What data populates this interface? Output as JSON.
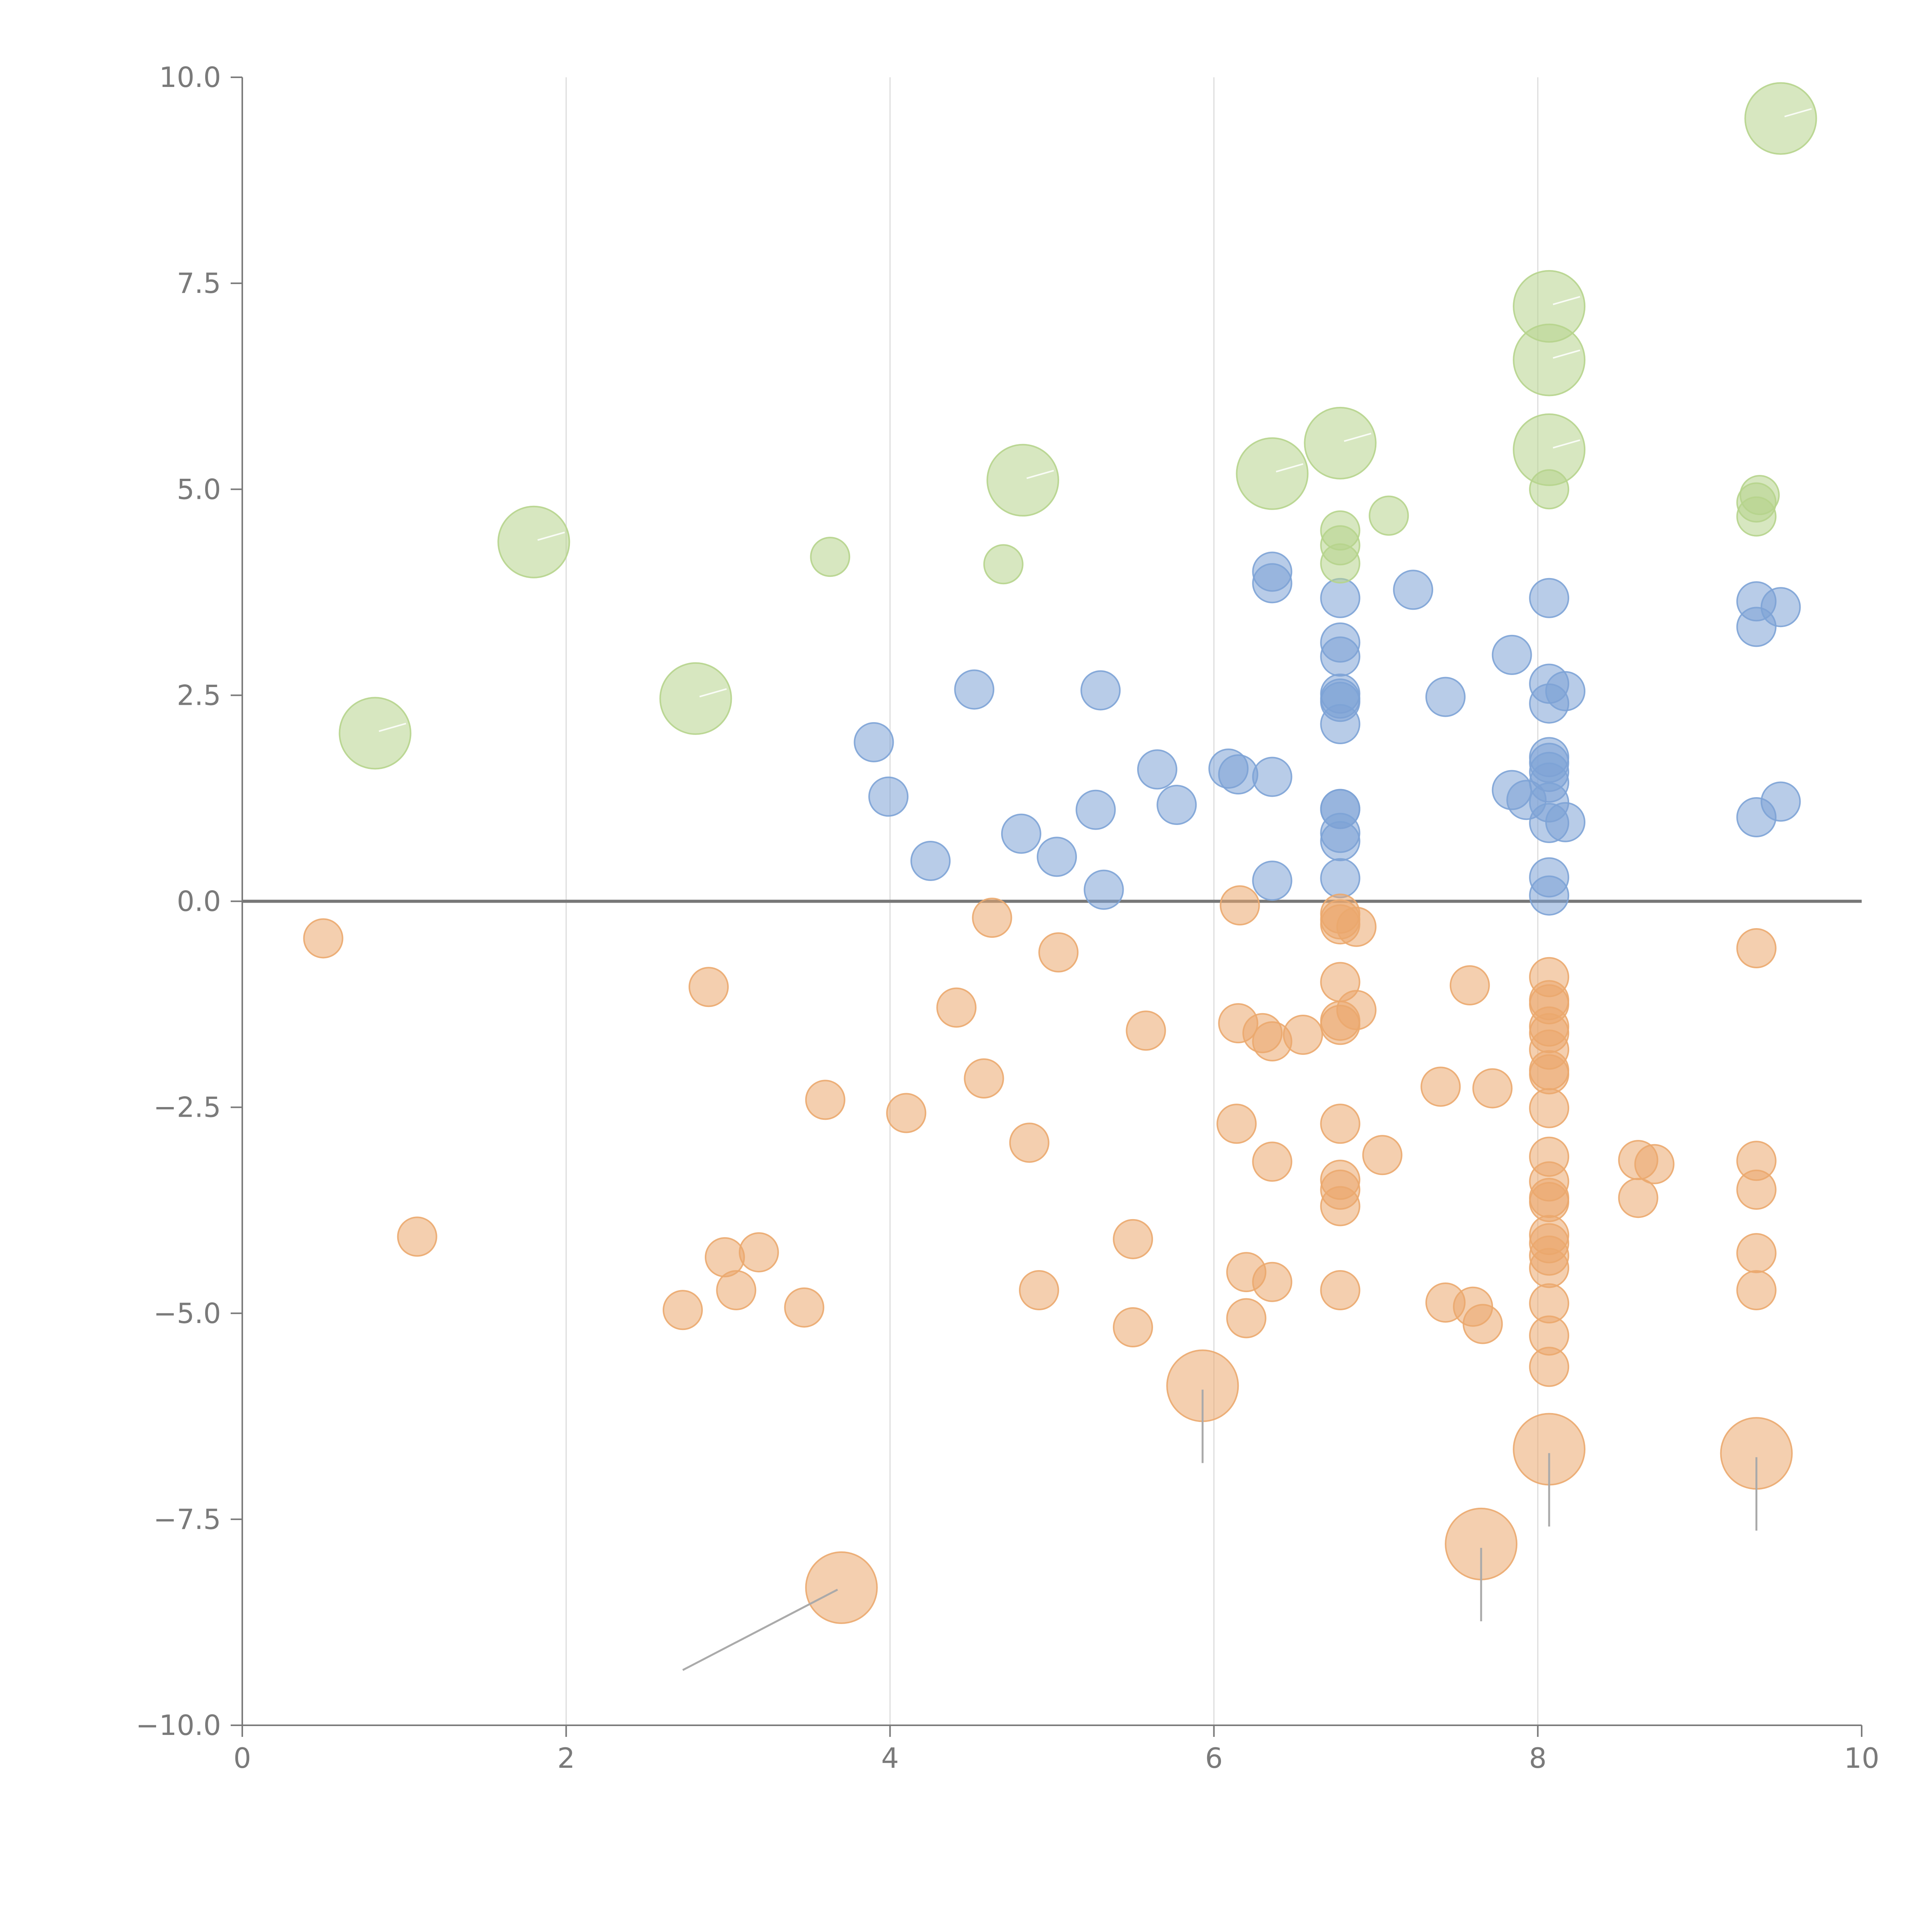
{
  "chart_data": {
    "type": "scatter",
    "title": "",
    "xlabel": "",
    "ylabel": "",
    "xlim": [
      0,
      10
    ],
    "ylim": [
      -10,
      10
    ],
    "x_ticks": [
      0,
      2,
      4,
      6,
      8,
      10
    ],
    "x_tick_labels": [
      "0",
      "2",
      "4",
      "6",
      "8",
      "10"
    ],
    "y_ticks": [
      10,
      7.5,
      5,
      2.5,
      0,
      -2.5,
      -5,
      -7.5,
      -10
    ],
    "y_tick_labels": [
      "10.0",
      "7.5",
      "5.0",
      "2.5",
      "0.0",
      "−2.5",
      "−5.0",
      "−7.5",
      "−10.0"
    ],
    "vertical_gridlines_at_x": [
      2,
      4,
      6,
      8
    ],
    "reference_line_y": 0,
    "colors": {
      "blue": "#7da3d6",
      "orange": "#eba86e",
      "green": "#b6d48c",
      "axis": "#7a7a7a",
      "grid": "#dddddd",
      "zero_line": "#777777"
    },
    "series": [
      {
        "name": "blue",
        "color": "#7da3d6",
        "points": [
          [
            3.9,
            1.93
          ],
          [
            3.99,
            1.27
          ],
          [
            4.25,
            0.49
          ],
          [
            4.52,
            2.57
          ],
          [
            4.81,
            0.82
          ],
          [
            5.03,
            0.54
          ],
          [
            5.27,
            1.11
          ],
          [
            5.3,
            2.56
          ],
          [
            5.32,
            0.14
          ],
          [
            5.65,
            1.6
          ],
          [
            5.77,
            1.17
          ],
          [
            6.09,
            1.61
          ],
          [
            6.15,
            1.54
          ],
          [
            6.36,
            1.51
          ],
          [
            6.36,
            0.25
          ],
          [
            6.36,
            4.0
          ],
          [
            6.36,
            3.86
          ],
          [
            6.78,
            3.68
          ],
          [
            6.78,
            3.14
          ],
          [
            6.78,
            2.97
          ],
          [
            6.78,
            2.52
          ],
          [
            6.78,
            2.46
          ],
          [
            6.78,
            2.42
          ],
          [
            6.78,
            2.15
          ],
          [
            6.78,
            1.12
          ],
          [
            6.78,
            1.12
          ],
          [
            6.78,
            0.83
          ],
          [
            6.78,
            0.73
          ],
          [
            6.78,
            0.28
          ],
          [
            7.23,
            3.78
          ],
          [
            7.43,
            2.48
          ],
          [
            7.84,
            2.99
          ],
          [
            7.84,
            1.35
          ],
          [
            7.93,
            1.23
          ],
          [
            8.07,
            3.68
          ],
          [
            8.07,
            2.64
          ],
          [
            8.07,
            2.4
          ],
          [
            8.07,
            1.75
          ],
          [
            8.07,
            1.68
          ],
          [
            8.07,
            1.57
          ],
          [
            8.07,
            1.44
          ],
          [
            8.07,
            1.2
          ],
          [
            8.07,
            0.95
          ],
          [
            8.07,
            0.29
          ],
          [
            8.07,
            0.07
          ],
          [
            8.17,
            2.55
          ],
          [
            8.17,
            0.96
          ],
          [
            9.35,
            3.64
          ],
          [
            9.35,
            3.33
          ],
          [
            9.35,
            1.02
          ],
          [
            9.5,
            3.57
          ],
          [
            9.5,
            1.21
          ]
        ]
      },
      {
        "name": "orange",
        "color": "#eba86e",
        "points": [
          [
            0.5,
            -0.45
          ],
          [
            1.08,
            -4.07
          ],
          [
            2.72,
            -4.96
          ],
          [
            2.88,
            -1.04
          ],
          [
            2.98,
            -4.32
          ],
          [
            3.05,
            -4.72
          ],
          [
            3.19,
            -4.26
          ],
          [
            3.47,
            -4.93
          ],
          [
            3.6,
            -2.41
          ],
          [
            4.1,
            -2.57
          ],
          [
            4.41,
            -1.29
          ],
          [
            4.58,
            -2.15
          ],
          [
            4.63,
            -0.2
          ],
          [
            4.86,
            -2.93
          ],
          [
            4.92,
            -4.72
          ],
          [
            5.04,
            -0.62
          ],
          [
            5.5,
            -4.1
          ],
          [
            5.5,
            -5.17
          ],
          [
            5.58,
            -1.57
          ],
          [
            6.16,
            -0.05
          ],
          [
            6.15,
            -1.48
          ],
          [
            6.14,
            -2.7
          ],
          [
            6.2,
            -4.5
          ],
          [
            6.2,
            -5.06
          ],
          [
            6.3,
            -1.6
          ],
          [
            6.36,
            -1.7
          ],
          [
            6.36,
            -3.16
          ],
          [
            6.36,
            -4.62
          ],
          [
            6.55,
            -1.62
          ],
          [
            6.78,
            -0.15
          ],
          [
            6.78,
            -0.22
          ],
          [
            6.78,
            -0.28
          ],
          [
            6.78,
            -0.98
          ],
          [
            6.78,
            -1.45
          ],
          [
            6.78,
            -1.5
          ],
          [
            6.78,
            -2.7
          ],
          [
            6.78,
            -3.38
          ],
          [
            6.78,
            -3.5
          ],
          [
            6.78,
            -3.7
          ],
          [
            6.78,
            -4.72
          ],
          [
            6.88,
            -0.31
          ],
          [
            6.88,
            -1.32
          ],
          [
            7.04,
            -3.08
          ],
          [
            7.4,
            -2.25
          ],
          [
            7.43,
            -4.87
          ],
          [
            7.58,
            -1.02
          ],
          [
            7.6,
            -4.92
          ],
          [
            7.66,
            -5.13
          ],
          [
            7.72,
            -2.27
          ],
          [
            8.07,
            -0.92
          ],
          [
            8.07,
            -1.2
          ],
          [
            8.07,
            -1.25
          ],
          [
            8.07,
            -1.52
          ],
          [
            8.07,
            -1.6
          ],
          [
            8.07,
            -1.8
          ],
          [
            8.07,
            -2.05
          ],
          [
            8.07,
            -2.1
          ],
          [
            8.07,
            -2.51
          ],
          [
            8.07,
            -3.1
          ],
          [
            8.07,
            -3.4
          ],
          [
            8.07,
            -3.6
          ],
          [
            8.07,
            -3.65
          ],
          [
            8.07,
            -4.05
          ],
          [
            8.07,
            -4.15
          ],
          [
            8.07,
            -4.3
          ],
          [
            8.07,
            -4.45
          ],
          [
            8.07,
            -4.88
          ],
          [
            8.07,
            -5.27
          ],
          [
            8.07,
            -5.65
          ],
          [
            8.62,
            -3.14
          ],
          [
            8.62,
            -3.6
          ],
          [
            8.72,
            -3.19
          ],
          [
            9.35,
            -0.57
          ],
          [
            9.35,
            -3.15
          ],
          [
            9.35,
            -3.5
          ],
          [
            9.35,
            -4.27
          ],
          [
            9.35,
            -4.72
          ]
        ]
      },
      {
        "name": "green",
        "color": "#b6d48c",
        "points": [
          [
            3.63,
            4.18
          ],
          [
            4.7,
            4.09
          ],
          [
            6.78,
            4.5
          ],
          [
            6.78,
            4.32
          ],
          [
            6.78,
            4.1
          ],
          [
            7.08,
            4.68
          ],
          [
            8.07,
            5.0
          ],
          [
            9.37,
            4.93
          ],
          [
            9.35,
            4.84
          ],
          [
            9.35,
            4.67
          ]
        ]
      }
    ],
    "annotated_bubbles": [
      {
        "series": "green",
        "x": 0.82,
        "y": 2.04
      },
      {
        "series": "green",
        "x": 1.8,
        "y": 4.36
      },
      {
        "series": "green",
        "x": 2.8,
        "y": 2.46
      },
      {
        "series": "green",
        "x": 4.82,
        "y": 5.11
      },
      {
        "series": "green",
        "x": 6.36,
        "y": 5.19
      },
      {
        "series": "green",
        "x": 6.78,
        "y": 5.56
      },
      {
        "series": "green",
        "x": 8.07,
        "y": 7.22
      },
      {
        "series": "green",
        "x": 8.07,
        "y": 6.57
      },
      {
        "series": "green",
        "x": 8.07,
        "y": 5.48
      },
      {
        "series": "green",
        "x": 9.5,
        "y": 9.5
      },
      {
        "series": "orange",
        "x": 3.7,
        "y": -8.33
      },
      {
        "series": "orange",
        "x": 5.93,
        "y": -5.88
      },
      {
        "series": "orange",
        "x": 7.65,
        "y": -7.8
      },
      {
        "series": "orange",
        "x": 8.07,
        "y": -6.65
      },
      {
        "series": "orange",
        "x": 9.35,
        "y": -6.7
      }
    ]
  }
}
